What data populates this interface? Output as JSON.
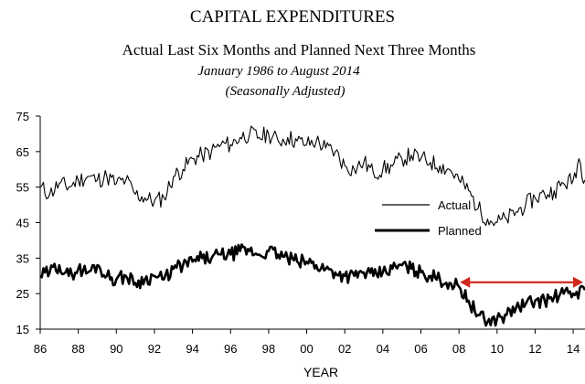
{
  "chart_data": {
    "type": "line",
    "title": "CAPITAL EXPENDITURES",
    "subtitle": "Actual Last Six Months and Planned Next Three Months",
    "subtitle_line2": "January 1986 to August 2014",
    "subtitle_line3": "(Seasonally Adjusted)",
    "xlabel": "YEAR",
    "ylabel": "",
    "xlim": [
      1986,
      2014.62
    ],
    "ylim": [
      15,
      75
    ],
    "x_ticks": [
      {
        "value": 1986,
        "label": "86"
      },
      {
        "value": 1988,
        "label": "88"
      },
      {
        "value": 1990,
        "label": "90"
      },
      {
        "value": 1992,
        "label": "92"
      },
      {
        "value": 1994,
        "label": "94"
      },
      {
        "value": 1996,
        "label": "96"
      },
      {
        "value": 1998,
        "label": "98"
      },
      {
        "value": 2000,
        "label": "00"
      },
      {
        "value": 2002,
        "label": "02"
      },
      {
        "value": 2004,
        "label": "04"
      },
      {
        "value": 2006,
        "label": "06"
      },
      {
        "value": 2008,
        "label": "08"
      },
      {
        "value": 2010,
        "label": "10"
      },
      {
        "value": 2012,
        "label": "12"
      },
      {
        "value": 2014,
        "label": "14"
      }
    ],
    "y_ticks": [
      15,
      25,
      35,
      45,
      55,
      65,
      75
    ],
    "grid": false,
    "legend_position": "right, inside plot",
    "series": [
      {
        "name": "Actual",
        "style": "thin",
        "color": "#000000",
        "points": [
          [
            1986.0,
            55
          ],
          [
            1986.5,
            53
          ],
          [
            1987.0,
            56
          ],
          [
            1987.5,
            55
          ],
          [
            1988.0,
            57
          ],
          [
            1988.5,
            58
          ],
          [
            1989.0,
            57
          ],
          [
            1989.5,
            58
          ],
          [
            1990.0,
            56
          ],
          [
            1990.5,
            57
          ],
          [
            1991.0,
            53
          ],
          [
            1991.5,
            52
          ],
          [
            1992.0,
            51
          ],
          [
            1992.5,
            52
          ],
          [
            1993.0,
            58
          ],
          [
            1993.5,
            60
          ],
          [
            1994.0,
            63
          ],
          [
            1994.5,
            64
          ],
          [
            1995.0,
            65
          ],
          [
            1995.5,
            67
          ],
          [
            1996.0,
            67
          ],
          [
            1996.5,
            69
          ],
          [
            1997.0,
            70
          ],
          [
            1997.5,
            69
          ],
          [
            1998.0,
            70
          ],
          [
            1998.5,
            68
          ],
          [
            1999.0,
            69
          ],
          [
            1999.5,
            68
          ],
          [
            2000.0,
            67
          ],
          [
            2000.5,
            68
          ],
          [
            2001.0,
            66
          ],
          [
            2001.5,
            65
          ],
          [
            2002.0,
            61
          ],
          [
            2002.5,
            60
          ],
          [
            2003.0,
            62
          ],
          [
            2003.5,
            59
          ],
          [
            2004.0,
            60
          ],
          [
            2004.5,
            61
          ],
          [
            2005.0,
            63
          ],
          [
            2005.5,
            64
          ],
          [
            2006.0,
            63
          ],
          [
            2006.5,
            62
          ],
          [
            2007.0,
            61
          ],
          [
            2007.5,
            60
          ],
          [
            2008.0,
            57
          ],
          [
            2008.5,
            54
          ],
          [
            2009.0,
            49
          ],
          [
            2009.5,
            46
          ],
          [
            2010.0,
            45
          ],
          [
            2010.5,
            46
          ],
          [
            2011.0,
            48
          ],
          [
            2011.5,
            50
          ],
          [
            2012.0,
            52
          ],
          [
            2012.5,
            53
          ],
          [
            2013.0,
            54
          ],
          [
            2013.5,
            56
          ],
          [
            2014.0,
            57
          ],
          [
            2014.3,
            63
          ],
          [
            2014.62,
            57
          ]
        ]
      },
      {
        "name": "Planned",
        "style": "thick",
        "color": "#000000",
        "points": [
          [
            1986.0,
            30
          ],
          [
            1986.5,
            31
          ],
          [
            1987.0,
            33
          ],
          [
            1987.5,
            30
          ],
          [
            1988.0,
            32
          ],
          [
            1988.5,
            31
          ],
          [
            1989.0,
            33
          ],
          [
            1989.5,
            30
          ],
          [
            1990.0,
            29
          ],
          [
            1990.5,
            30
          ],
          [
            1991.0,
            28
          ],
          [
            1991.5,
            29
          ],
          [
            1992.0,
            30
          ],
          [
            1992.5,
            29
          ],
          [
            1993.0,
            32
          ],
          [
            1993.5,
            33
          ],
          [
            1994.0,
            34
          ],
          [
            1994.5,
            35
          ],
          [
            1995.0,
            35
          ],
          [
            1995.5,
            36
          ],
          [
            1996.0,
            36
          ],
          [
            1996.5,
            37
          ],
          [
            1997.0,
            37
          ],
          [
            1997.5,
            36
          ],
          [
            1998.0,
            37
          ],
          [
            1998.5,
            36
          ],
          [
            1999.0,
            35
          ],
          [
            1999.5,
            34
          ],
          [
            2000.0,
            34
          ],
          [
            2000.5,
            33
          ],
          [
            2001.0,
            32
          ],
          [
            2001.5,
            31
          ],
          [
            2002.0,
            30
          ],
          [
            2002.5,
            30
          ],
          [
            2003.0,
            31
          ],
          [
            2003.5,
            30
          ],
          [
            2004.0,
            31
          ],
          [
            2004.5,
            32
          ],
          [
            2005.0,
            33
          ],
          [
            2005.5,
            32
          ],
          [
            2006.0,
            31
          ],
          [
            2006.5,
            30
          ],
          [
            2007.0,
            29
          ],
          [
            2007.5,
            28
          ],
          [
            2008.0,
            27
          ],
          [
            2008.5,
            23
          ],
          [
            2009.0,
            19
          ],
          [
            2009.5,
            17
          ],
          [
            2010.0,
            18
          ],
          [
            2010.5,
            19
          ],
          [
            2011.0,
            21
          ],
          [
            2011.5,
            22
          ],
          [
            2012.0,
            23
          ],
          [
            2012.5,
            23
          ],
          [
            2013.0,
            24
          ],
          [
            2013.5,
            25
          ],
          [
            2014.0,
            25
          ],
          [
            2014.62,
            26
          ]
        ]
      }
    ],
    "annotations": [
      {
        "type": "double-arrow",
        "color": "#d0281f",
        "x_start": 2008.05,
        "x_end": 2014.62,
        "y": 28.2
      }
    ]
  }
}
